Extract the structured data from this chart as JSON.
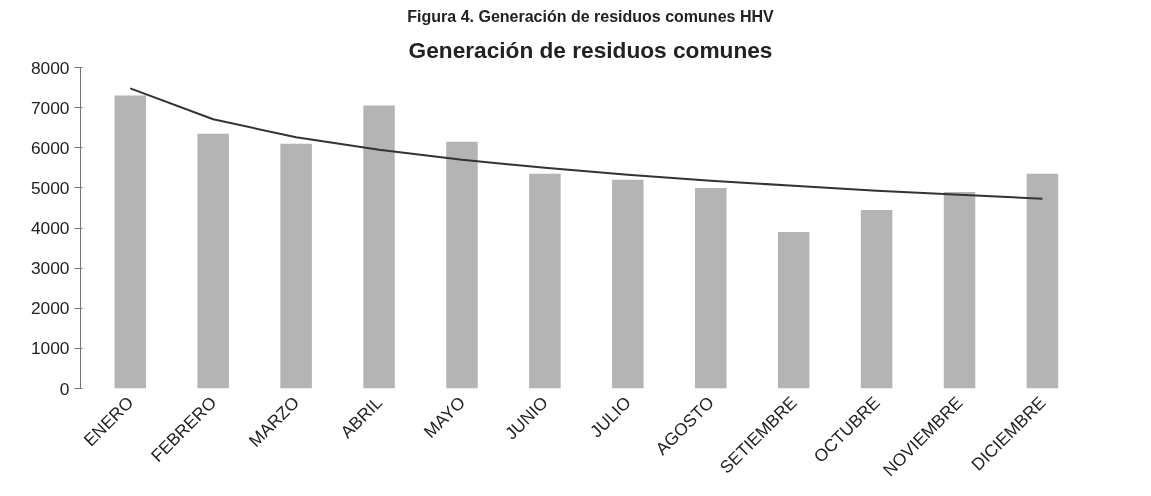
{
  "chart_data": {
    "type": "bar",
    "title": "Generación de residuos comunes",
    "annotations": [
      "Figura 4. Generación de residuos comunes HHV"
    ],
    "categories": [
      "ENERO",
      "FEBRERO",
      "MARZO",
      "ABRIL",
      "MAYO",
      "JUNIO",
      "JULIO",
      "AGOSTO",
      "SETIEMBRE",
      "OCTUBRE",
      "NOVIEMBRE",
      "DICIEMBRE"
    ],
    "series": [
      {
        "color": "#b4b4b4",
        "values": [
          7300,
          6350,
          6100,
          7050,
          6150,
          5350,
          5200,
          5000,
          3900,
          4450,
          4900,
          5350
        ]
      },
      {
        "type": "line",
        "color": "#333333",
        "values": [
          7480,
          6710,
          6260,
          5950,
          5700,
          5500,
          5330,
          5180,
          5050,
          4930,
          4830,
          4730
        ]
      }
    ],
    "ylim": [
      0,
      8000
    ],
    "yticks": [
      0,
      1000,
      2000,
      3000,
      4000,
      5000,
      6000,
      7000,
      8000
    ],
    "grid": false
  }
}
